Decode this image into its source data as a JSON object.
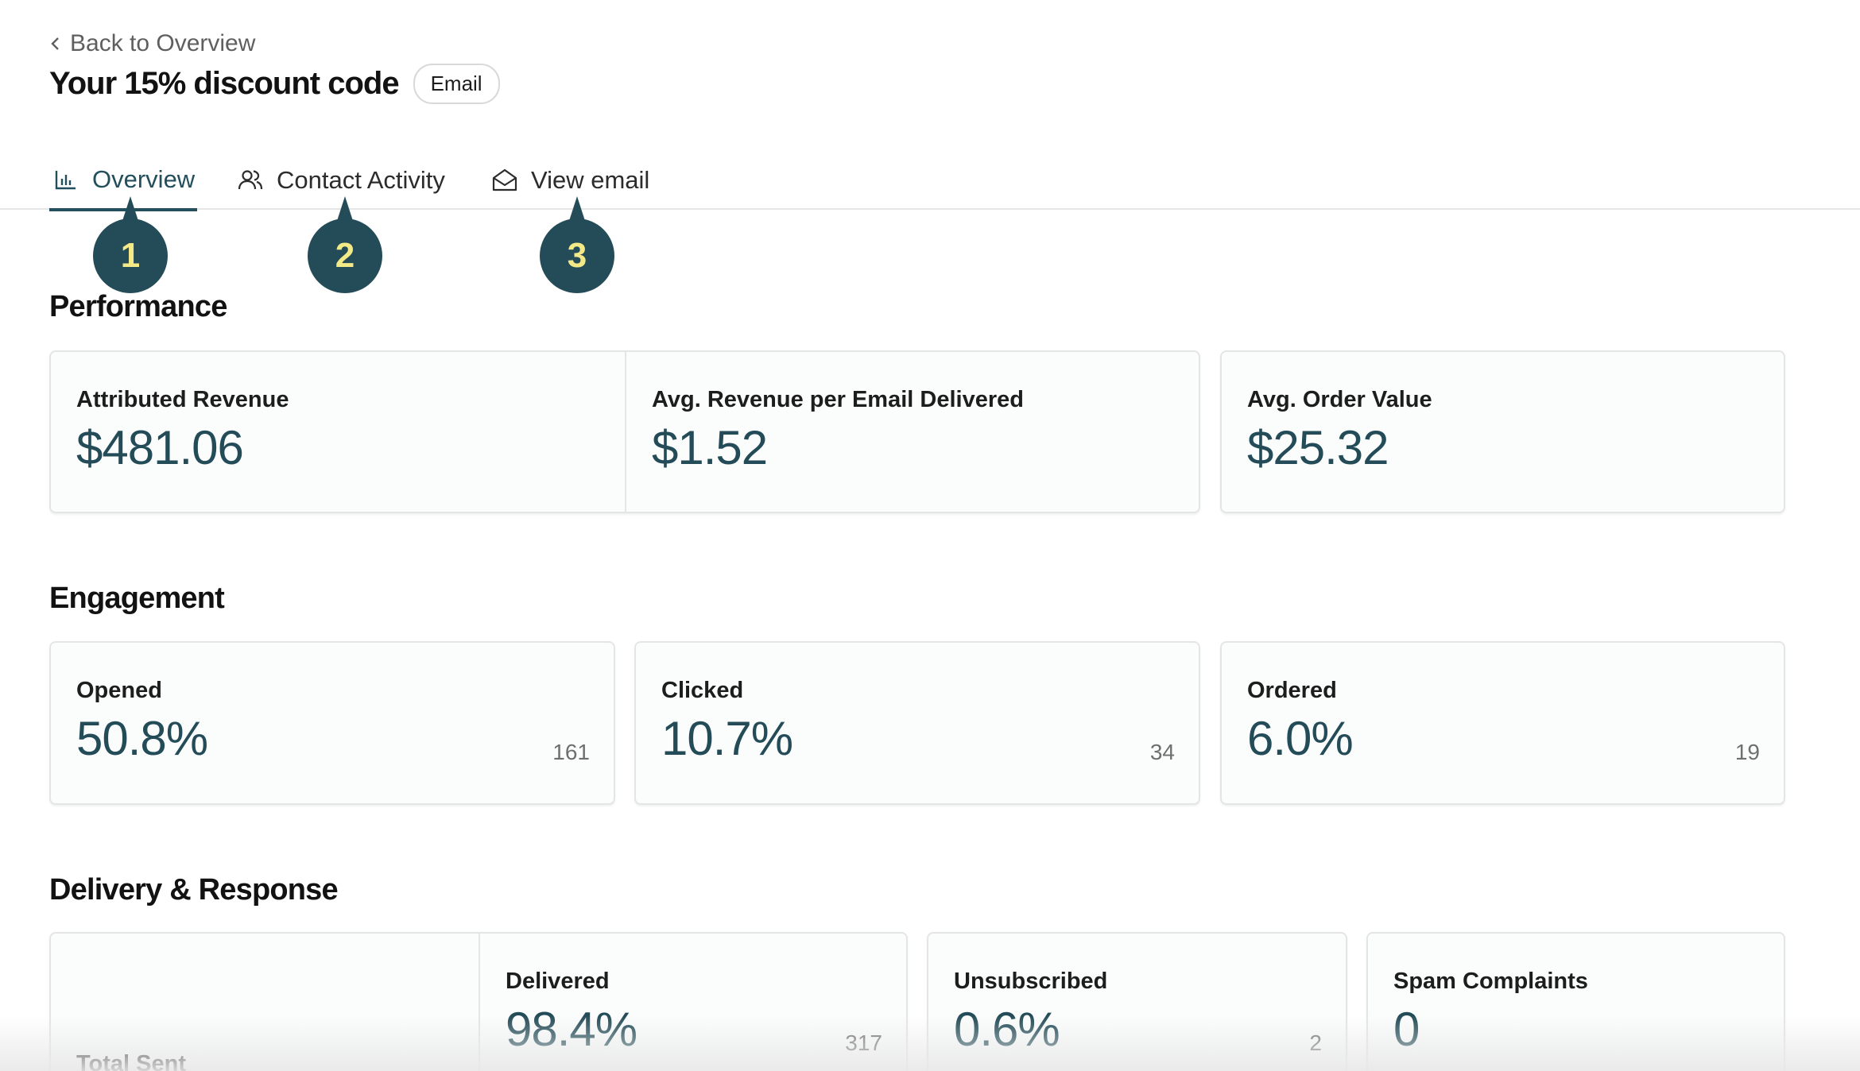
{
  "header": {
    "back_label": "Back to Overview",
    "title": "Your 15% discount code",
    "badge": "Email"
  },
  "tabs": [
    {
      "label": "Overview",
      "icon": "bar-chart-icon",
      "active": true
    },
    {
      "label": "Contact Activity",
      "icon": "users-icon",
      "active": false
    },
    {
      "label": "View email",
      "icon": "envelope-open-icon",
      "active": false
    }
  ],
  "markers": [
    "1",
    "2",
    "3"
  ],
  "performance": {
    "title": "Performance",
    "metrics": [
      {
        "label": "Attributed Revenue",
        "value": "$481.06"
      },
      {
        "label": "Avg. Revenue per Email Delivered",
        "value": "$1.52"
      },
      {
        "label": "Avg. Order Value",
        "value": "$25.32"
      }
    ]
  },
  "engagement": {
    "title": "Engagement",
    "metrics": [
      {
        "label": "Opened",
        "value": "50.8%",
        "count": "161"
      },
      {
        "label": "Clicked",
        "value": "10.7%",
        "count": "34"
      },
      {
        "label": "Ordered",
        "value": "6.0%",
        "count": "19"
      }
    ]
  },
  "delivery": {
    "title": "Delivery & Response",
    "metrics": [
      {
        "label": "Total Sent"
      },
      {
        "label": "Delivered",
        "value": "98.4%",
        "count": "317"
      },
      {
        "label": "Unsubscribed",
        "value": "0.6%",
        "count": "2"
      },
      {
        "label": "Spam Complaints",
        "value": "0"
      }
    ]
  },
  "colors": {
    "accent": "#244c58",
    "marker_text": "#f4e987",
    "border": "#e4e6e6"
  }
}
